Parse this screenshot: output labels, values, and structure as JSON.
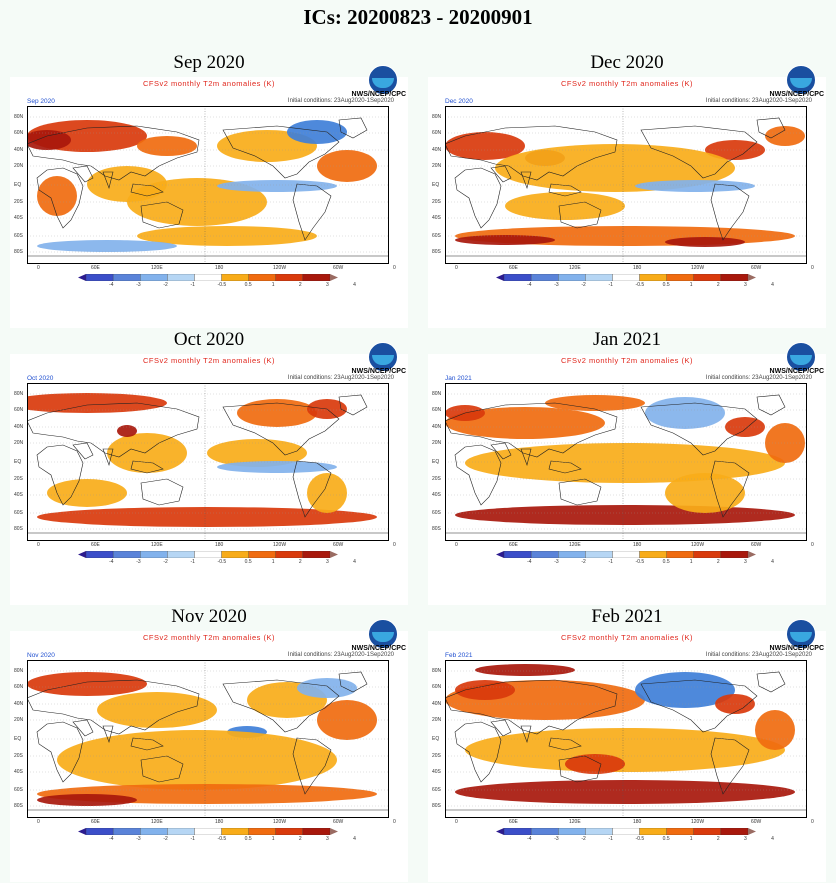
{
  "page_title": "ICs: 20200823 - 20200901",
  "panel_title": "CFSv2 monthly T2m anomalies (K)",
  "org_label": "NWS/NCEP/CPC",
  "initial_conditions": "Initial conditions: 23Aug2020-1Sep2020",
  "lat_labels": [
    "80N",
    "60N",
    "40N",
    "20N",
    "EQ",
    "20S",
    "40S",
    "60S",
    "80S"
  ],
  "lon_labels": [
    "0",
    "60E",
    "120E",
    "180",
    "120W",
    "60W",
    "0"
  ],
  "colorbar": {
    "ticks": [
      "-4",
      "-3",
      "-2",
      "-1",
      "-0.5",
      "0.5",
      "1",
      "2",
      "3",
      "4"
    ],
    "colors": [
      "#2c1b8f",
      "#3b4ec9",
      "#5a83d9",
      "#82b2ec",
      "#b6d6f4",
      "#ffffff",
      "#f8ac19",
      "#f06b0f",
      "#d93a0c",
      "#a8180c",
      "#9a6b62"
    ]
  },
  "colors": {
    "land_outline": "#222222",
    "warm_weak": "#f8ac19",
    "warm_mid": "#f06b0f",
    "warm_strong": "#d93a0c",
    "warm_extreme": "#a8180c",
    "cold_weak": "#82b2ec",
    "cold_mid": "#3f7fd8",
    "title_red": "#e0261c"
  },
  "panels": [
    {
      "heading": "Sep 2020",
      "tag": "Sep 2020",
      "pattern": "sep"
    },
    {
      "heading": "Dec 2020",
      "tag": "Dec 2020",
      "pattern": "dec"
    },
    {
      "heading": "Oct 2020",
      "tag": "Oct 2020",
      "pattern": "oct"
    },
    {
      "heading": "Jan 2021",
      "tag": "Jan 2021",
      "pattern": "jan"
    },
    {
      "heading": "Nov 2020",
      "tag": "Nov 2020",
      "pattern": "nov"
    },
    {
      "heading": "Feb 2021",
      "tag": "Feb 2021",
      "pattern": "feb"
    }
  ]
}
